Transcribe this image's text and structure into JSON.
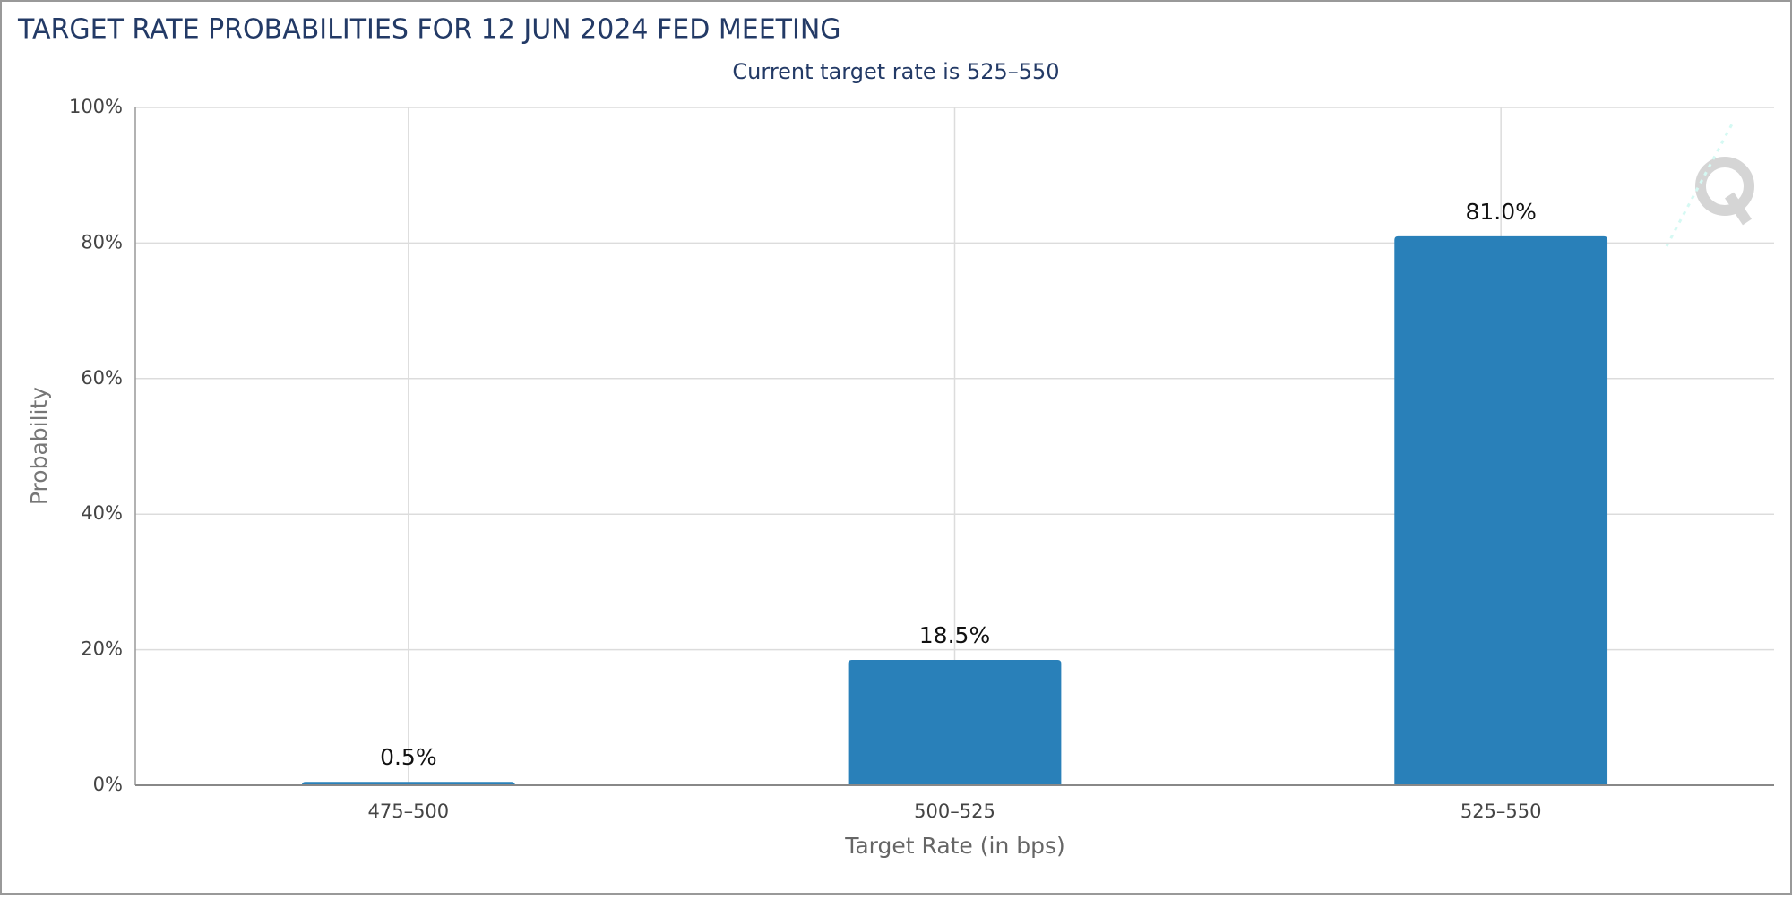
{
  "chart_data": {
    "type": "bar",
    "title": "TARGET RATE PROBABILITIES FOR 12 JUN 2024 FED MEETING",
    "subtitle": "Current target rate is 525–550",
    "x_label": "Target Rate (in bps)",
    "y_label": "Probability",
    "categories": [
      "475–500",
      "500–525",
      "525–550"
    ],
    "values": [
      0.5,
      18.5,
      81.0
    ],
    "value_labels": [
      "0.5%",
      "18.5%",
      "81.0%"
    ],
    "color": "#2980b9",
    "ylim": [
      0,
      100
    ],
    "yticks": [
      {
        "value": 0,
        "label": "0%"
      },
      {
        "value": 20,
        "label": "20%"
      },
      {
        "value": 40,
        "label": "40%"
      },
      {
        "value": 60,
        "label": "60%"
      },
      {
        "value": 80,
        "label": "80%"
      },
      {
        "value": 100,
        "label": "100%"
      }
    ],
    "grid": true
  }
}
